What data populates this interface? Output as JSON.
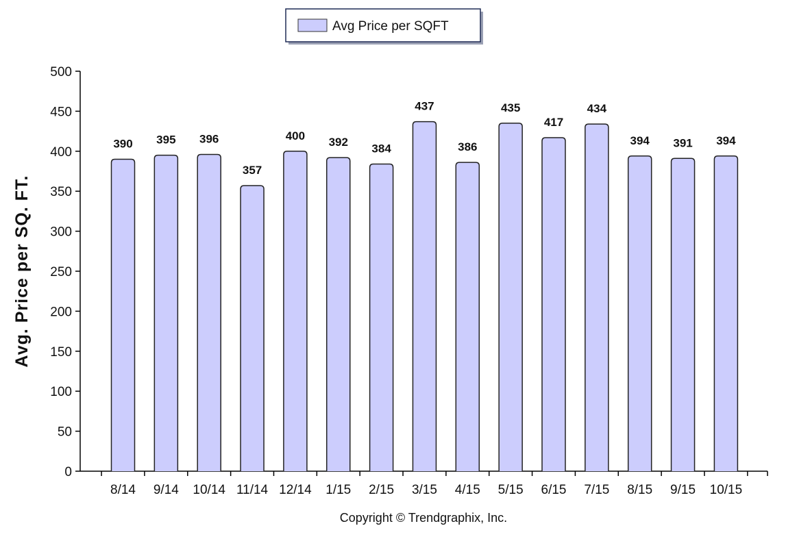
{
  "legend": {
    "label": "Avg Price per SQFT"
  },
  "copyright": "Copyright © Trendgraphix, Inc.",
  "colors": {
    "bar_fill": "#cccdfd",
    "bar_stroke": "#222222"
  },
  "chart_data": {
    "type": "bar",
    "title": "",
    "xlabel": "",
    "ylabel": "Avg. Price per SQ. FT.",
    "ylim": [
      0,
      500
    ],
    "yticks": [
      0,
      50,
      100,
      150,
      200,
      250,
      300,
      350,
      400,
      450,
      500
    ],
    "categories": [
      "8/14",
      "9/14",
      "10/14",
      "11/14",
      "12/14",
      "1/15",
      "2/15",
      "3/15",
      "4/15",
      "5/15",
      "6/15",
      "7/15",
      "8/15",
      "9/15",
      "10/15"
    ],
    "series": [
      {
        "name": "Avg Price per SQFT",
        "values": [
          390,
          395,
          396,
          357,
          400,
          392,
          384,
          437,
          386,
          435,
          417,
          434,
          394,
          391,
          394
        ]
      }
    ],
    "grid": false,
    "legend_position": "top-center"
  }
}
